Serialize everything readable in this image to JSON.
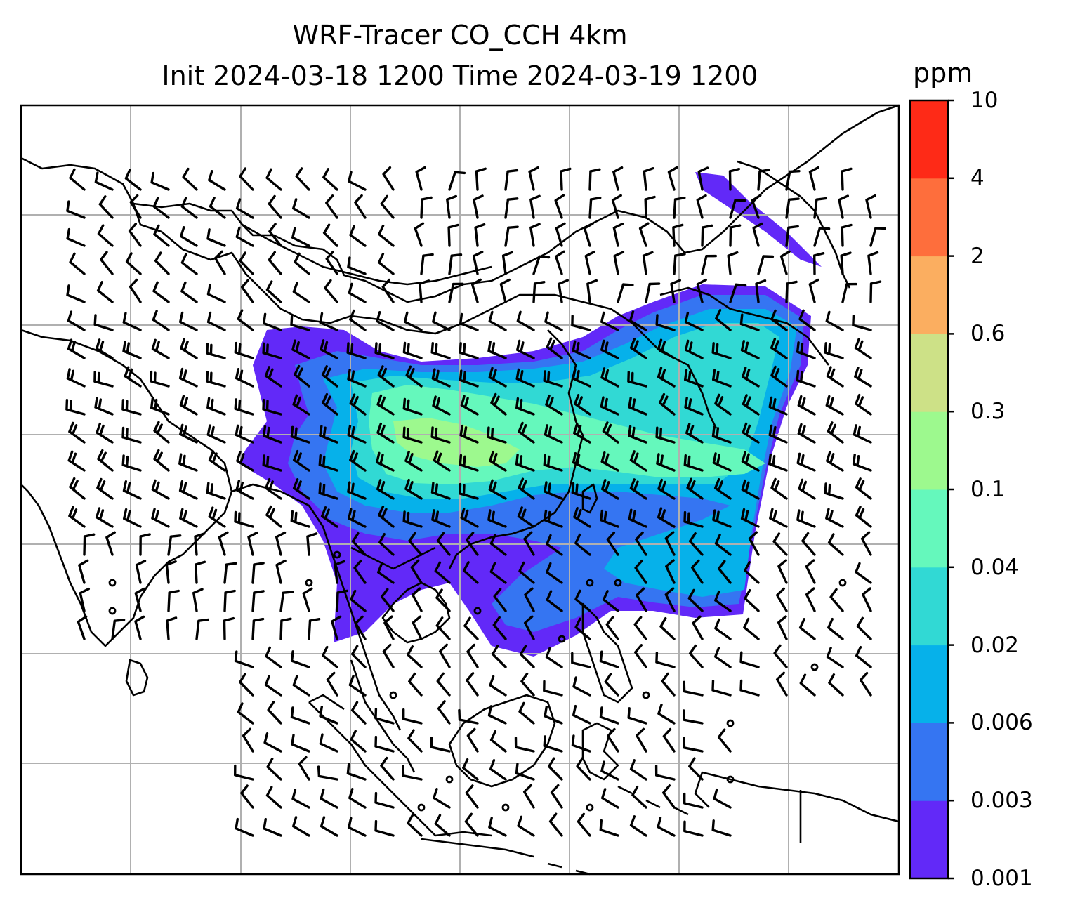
{
  "title": {
    "line1": "WRF-Tracer CO_CCH 4km",
    "line2": "Init 2024-03-18 1200 Time 2024-03-19 1200"
  },
  "colorbar": {
    "unit": "ppm",
    "ticks": [
      "0.001",
      "0.003",
      "0.006",
      "0.02",
      "0.04",
      "0.1",
      "0.3",
      "0.6",
      "2",
      "4",
      "10"
    ],
    "colors": [
      "#6229f8",
      "#3575f2",
      "#06b1ea",
      "#31d9d4",
      "#65f8bc",
      "#9df98e",
      "#cde187",
      "#fbae60",
      "#fe6e3c",
      "#fe2a17"
    ]
  },
  "map": {
    "gridlines": true,
    "frame_color": "#000000",
    "grid_color": "#b0b0b0",
    "coastline_color": "#000000",
    "barb_color": "#000000"
  }
}
